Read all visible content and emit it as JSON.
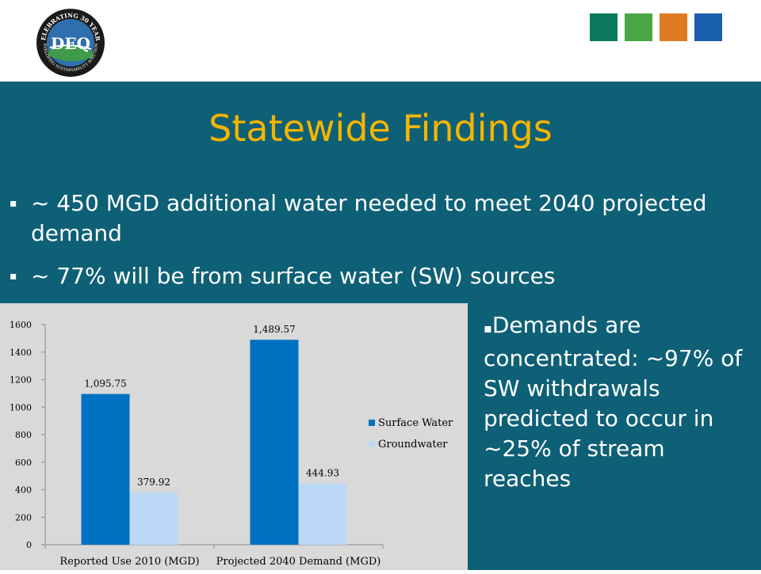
{
  "logo": {
    "top_text": "CELEBRATING 30 YEARS",
    "center_text": "DEQ",
    "bottom_text": "DEVELOPING SUSTAINABILITY SOLUTIONS"
  },
  "header": {
    "square_colors": [
      "#0b7a5c",
      "#4aa644",
      "#e07b22",
      "#1a5fae"
    ]
  },
  "title": "Statewide Findings",
  "bullets": [
    {
      "marker": "▪",
      "text": "~ 450 MGD additional water needed to meet 2040 projected demand"
    },
    {
      "marker": "▪",
      "text": "~ 77% will be from surface water (SW) sources"
    }
  ],
  "side_text": {
    "marker": "▪",
    "text": "Demands are concentrated: ~97% of  SW withdrawals predicted to occur in ~25% of stream reaches"
  },
  "colors": {
    "band": "#0e6076",
    "title": "#f5b400",
    "surface": "#0070c0",
    "ground": "#bcd8f7"
  },
  "chart_data": {
    "type": "bar",
    "categories": [
      "Reported Use 2010 (MGD)",
      "Projected 2040 Demand (MGD)"
    ],
    "series": [
      {
        "name": "Surface Water",
        "values": [
          1095.75,
          1489.57
        ],
        "labels": [
          "1,095.75",
          "1,489.57"
        ],
        "color": "#0070c0"
      },
      {
        "name": "Groundwater",
        "values": [
          379.92,
          444.93
        ],
        "labels": [
          "379.92",
          "444.93"
        ],
        "color": "#bcd8f7"
      }
    ],
    "ylim": [
      0,
      1600
    ],
    "yticks": [
      0,
      200,
      400,
      600,
      800,
      1000,
      1200,
      1400,
      1600
    ],
    "legend": "right",
    "grid": false
  }
}
